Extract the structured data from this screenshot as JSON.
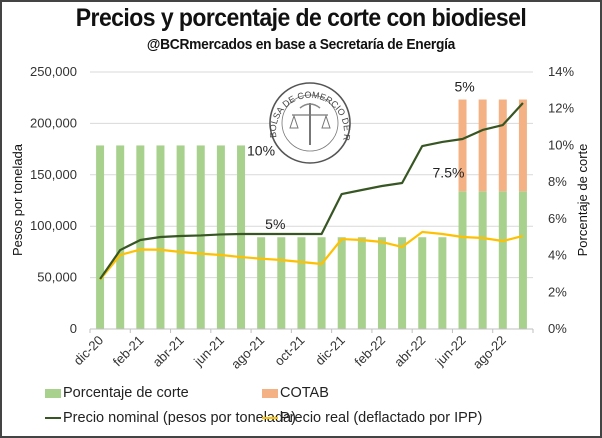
{
  "header": {
    "title": "Precios y porcentaje de corte con biodiesel",
    "subtitle": "@BCRmercados en base a Secretaría de Energía"
  },
  "logo": {
    "text": "BOLSA DE COMERCIO DE ROSARIO"
  },
  "chart_data": {
    "type": "bar+line",
    "title": "Precios y porcentaje de corte con biodiesel",
    "subtitle": "@BCRmercados en base a Secretaría de Energía",
    "categories": [
      "dic-20",
      "ene-21",
      "feb-21",
      "mar-21",
      "abr-21",
      "may-21",
      "jun-21",
      "jul-21",
      "ago-21",
      "sep-21",
      "oct-21",
      "nov-21",
      "dic-21",
      "ene-22",
      "feb-22",
      "mar-22",
      "abr-22",
      "may-22",
      "jun-22",
      "jul-22",
      "ago-22",
      "sep-22"
    ],
    "x_tick_labels": [
      "dic-20",
      "feb-21",
      "abr-21",
      "jun-21",
      "ago-21",
      "oct-21",
      "dic-21",
      "feb-22",
      "abr-22",
      "jun-22",
      "ago-22"
    ],
    "y_left": {
      "label": "Pesos por tonelada",
      "range": [
        0,
        250000
      ],
      "ticks": [
        "0",
        "50,000",
        "100,000",
        "150,000",
        "200,000",
        "250,000"
      ]
    },
    "y_right": {
      "label": "Porcentaje de corte",
      "range": [
        0,
        14
      ],
      "ticks": [
        "0%",
        "2%",
        "4%",
        "6%",
        "8%",
        "10%",
        "12%",
        "14%"
      ]
    },
    "grid": true,
    "series": [
      {
        "name": "Porcentaje de corte",
        "type": "bar",
        "axis": "right",
        "stack": "corte",
        "color": "#a9d18e",
        "values": [
          10,
          10,
          10,
          10,
          10,
          10,
          10,
          10,
          5,
          5,
          5,
          5,
          5,
          5,
          5,
          5,
          5,
          5,
          7.5,
          7.5,
          7.5,
          7.5
        ]
      },
      {
        "name": "COTAB",
        "type": "bar",
        "axis": "right",
        "stack": "corte",
        "color": "#f4b183",
        "values": [
          0,
          0,
          0,
          0,
          0,
          0,
          0,
          0,
          0,
          0,
          0,
          0,
          0,
          0,
          0,
          0,
          0,
          0,
          5,
          5,
          5,
          5
        ]
      },
      {
        "name": "Precio nominal (pesos por tonelada)",
        "type": "line",
        "axis": "left",
        "color": "#375623",
        "values": [
          48600,
          76800,
          86600,
          89500,
          90500,
          91000,
          92000,
          92400,
          92400,
          92400,
          92400,
          92400,
          131300,
          135200,
          139100,
          142000,
          178000,
          182000,
          184800,
          193600,
          198400,
          219800
        ]
      },
      {
        "name": "Precio real (deflactado por IPP)",
        "type": "line",
        "axis": "left",
        "color": "#ffc000",
        "values": [
          48000,
          72000,
          77300,
          77100,
          74900,
          73300,
          72000,
          70000,
          68400,
          67100,
          65200,
          63200,
          87500,
          86600,
          84600,
          79800,
          94400,
          92400,
          89500,
          88500,
          85600,
          90500
        ]
      }
    ],
    "annotations": [
      {
        "text": "10%",
        "category": "jul-21",
        "value_pct": 10
      },
      {
        "text": "5%",
        "category": "ago-21",
        "value_pct": 5
      },
      {
        "text": "7.5%",
        "category": "jun-22",
        "value_pct": 7.5
      },
      {
        "text": "5%",
        "category": "jun-22",
        "value_pct": 12.5
      }
    ],
    "legend": {
      "position": "bottom",
      "entries": [
        "Porcentaje de corte",
        "COTAB",
        "Precio nominal (pesos por tonelada)",
        "Precio real (deflactado por IPP)"
      ]
    }
  }
}
